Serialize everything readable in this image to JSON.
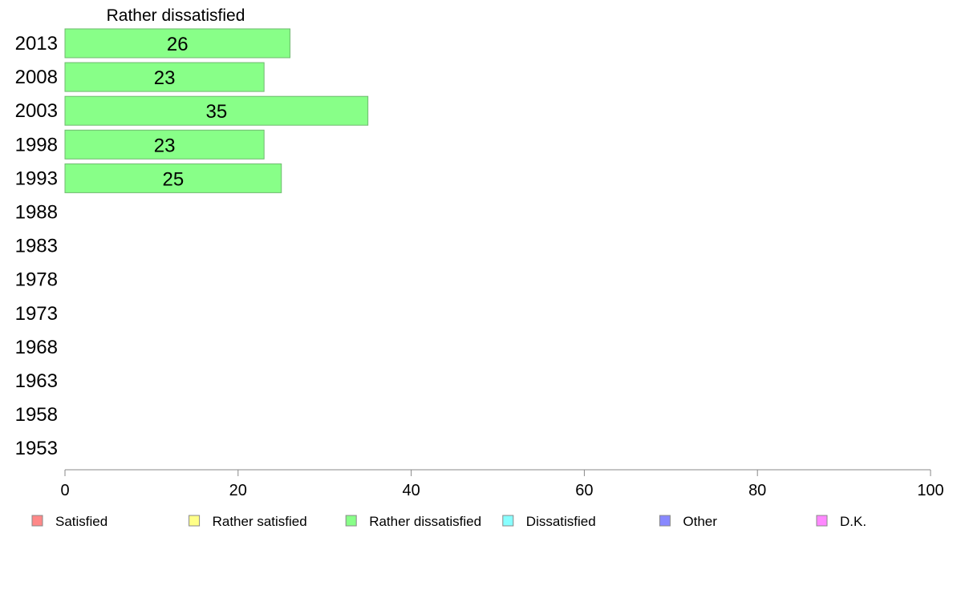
{
  "chart_data": {
    "type": "bar",
    "orientation": "horizontal",
    "title": "Rather dissatisfied",
    "categories": [
      "2013",
      "2008",
      "2003",
      "1998",
      "1993",
      "1988",
      "1983",
      "1978",
      "1973",
      "1968",
      "1963",
      "1958",
      "1953"
    ],
    "series": [
      {
        "name": "Rather dissatisfied",
        "color": "#88ff88",
        "values": [
          26,
          23,
          35,
          23,
          25,
          null,
          null,
          null,
          null,
          null,
          null,
          null,
          null
        ]
      }
    ],
    "xlim": [
      0,
      100
    ],
    "xticks": [
      "0",
      "20",
      "40",
      "60",
      "80",
      "100"
    ],
    "grid": false,
    "legend_position": "bottom",
    "legend": [
      {
        "label": "Satisfied",
        "color": "#ff8888"
      },
      {
        "label": "Rather satisfied",
        "color": "#ffff88"
      },
      {
        "label": "Rather dissatisfied",
        "color": "#88ff88"
      },
      {
        "label": "Dissatisfied",
        "color": "#88ffff"
      },
      {
        "label": "Other",
        "color": "#8888ff"
      },
      {
        "label": "D.K.",
        "color": "#ff88ff"
      }
    ]
  }
}
